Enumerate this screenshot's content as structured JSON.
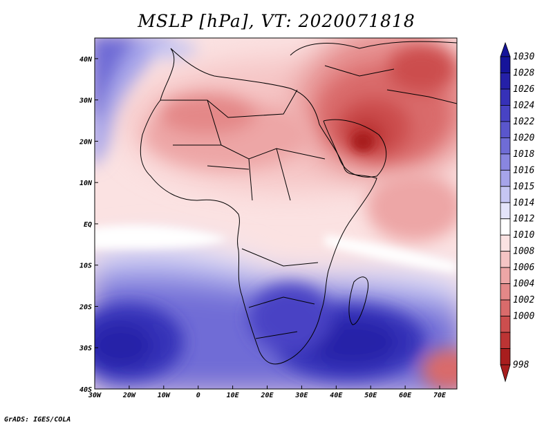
{
  "title": "MSLP [hPa], VT: 2020071818",
  "credit": "GrADS: IGES/COLA",
  "axes": {
    "x_ticks": [
      "30W",
      "20W",
      "10W",
      "0",
      "10E",
      "20E",
      "30E",
      "40E",
      "50E",
      "60E",
      "70E"
    ],
    "y_ticks": [
      "40N",
      "30N",
      "20N",
      "10N",
      "EQ",
      "10S",
      "20S",
      "30S",
      "40S"
    ]
  },
  "colorbar": {
    "labels": [
      "1030",
      "1028",
      "1026",
      "1024",
      "1022",
      "1020",
      "1018",
      "1016",
      "1015",
      "1014",
      "1012",
      "1010",
      "1008",
      "1006",
      "1004",
      "1002",
      "1000",
      "998"
    ],
    "colors": [
      "#16149a",
      "#2520a8",
      "#3631b8",
      "#4843c4",
      "#5a56cc",
      "#6f6cd6",
      "#8986e0",
      "#a6a4ea",
      "#c6c6f3",
      "#e4e4fa",
      "#ffffff",
      "#fbe2e2",
      "#f5c4c4",
      "#eda6a6",
      "#e48888",
      "#d96b6b",
      "#cc4e4e",
      "#bc3434",
      "#a81e1e"
    ]
  },
  "chart_data": {
    "type": "heatmap",
    "title": "MSLP [hPa], VT: 2020071818",
    "variable": "Mean sea level pressure",
    "units": "hPa",
    "valid_time": "2020071818",
    "lon_range": [
      -30,
      75
    ],
    "lat_range": [
      -40,
      45
    ],
    "levels": [
      998,
      1000,
      1002,
      1004,
      1006,
      1008,
      1010,
      1012,
      1014,
      1015,
      1016,
      1018,
      1020,
      1022,
      1024,
      1026,
      1028,
      1030
    ],
    "features": [
      {
        "name": "Arabian / Middle East thermal low",
        "lon": 45,
        "lat": 22,
        "value": 998
      },
      {
        "name": "Sahara heat low",
        "lon": 0,
        "lat": 22,
        "value": 1004
      },
      {
        "name": "South Atlantic high",
        "lon": -25,
        "lat": -30,
        "value": 1026
      },
      {
        "name": "South Indian Ocean high",
        "lon": 50,
        "lat": -30,
        "value": 1028
      },
      {
        "name": "Southern Africa high",
        "lon": 28,
        "lat": -24,
        "value": 1026
      },
      {
        "name": "Azores high edge",
        "lon": -28,
        "lat": 38,
        "value": 1022
      }
    ]
  }
}
